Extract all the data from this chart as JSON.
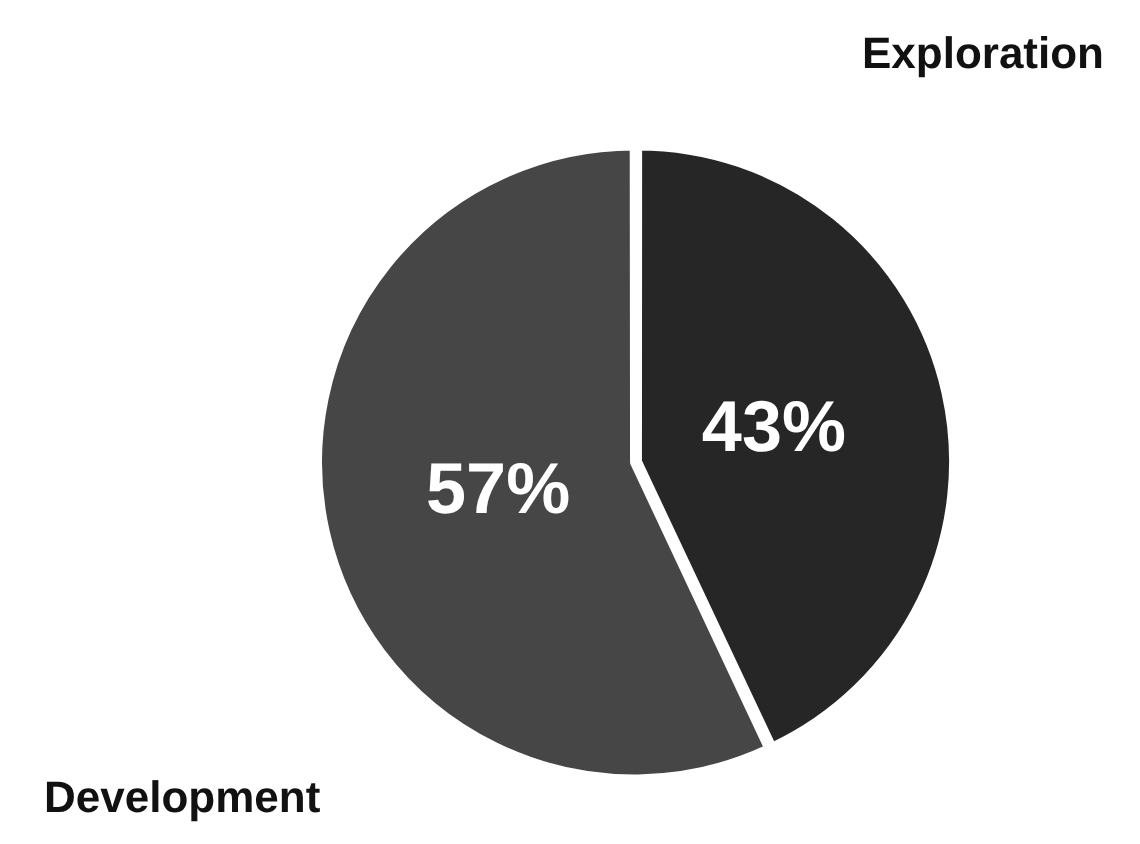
{
  "chart_data": {
    "type": "pie",
    "categories": [
      "Exploration",
      "Development"
    ],
    "values": [
      43,
      57
    ],
    "colors": [
      "#262626",
      "#464646"
    ],
    "value_labels": [
      "43%",
      "57%"
    ]
  }
}
